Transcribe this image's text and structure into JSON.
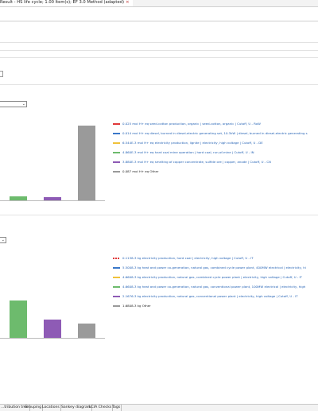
{
  "window": {
    "tab_title": "Result - HS life cycle; 1.00 Item(s); EF 3.0 Method (adapted)",
    "close_icon": "close-icon"
  },
  "chart1": {
    "legend": [
      {
        "color": "#e0393a",
        "style": "solid",
        "value": "0.025 mol H+ eq",
        "text": "seed-cotton production, organic | seed-cotton, organic | Cutoff, U - RoW",
        "link": true
      },
      {
        "color": "#3a78c9",
        "style": "solid",
        "value": "0.014 mol H+ eq",
        "text": "diesel, burned in diesel-electric generating set, 10.3kW | diesel, burned in diesel-electric generating s",
        "link": true
      },
      {
        "color": "#f0c23b",
        "style": "solid",
        "value": "6.544E-3 mol H+ eq",
        "text": "electricity production, lignite | electricity, high voltage | Cutoff, U - DE",
        "link": true
      },
      {
        "color": "#6dbb6d",
        "style": "solid",
        "value": "4.860E-3 mol H+ eq",
        "text": "hard coal mine operation | hard coal, run-of-mine | Cutoff, U - IN",
        "link": true
      },
      {
        "color": "#8e5bb5",
        "style": "solid",
        "value": "3.880E-3 mol H+ eq",
        "text": "smelting of copper concentrate, sulfide ore | copper, anode | Cutoff, U - CN",
        "link": true
      },
      {
        "color": "#9a9a9a",
        "style": "solid",
        "value": "0.087 mol H+ eq",
        "text": "Other",
        "link": false
      }
    ]
  },
  "chart2": {
    "legend": [
      {
        "color": "#e0393a",
        "style": "dashed",
        "value": "0.1138-3 kg",
        "text": "electricity production, hard coal | electricity, high voltage | Cutoff, U - IT",
        "link": true
      },
      {
        "color": "#3a78c9",
        "style": "solid",
        "value": "5.5008-3 kg",
        "text": "heat and power co-generation, natural gas, combined cycle power plant, 400MW electrical | electricity, hi",
        "link": true
      },
      {
        "color": "#f0c23b",
        "style": "solid",
        "value": "4.6608-3 kg",
        "text": "electricity production, natural gas, combined cycle power plant | electricity, high voltage | Cutoff, U - IT",
        "link": true
      },
      {
        "color": "#6dbb6d",
        "style": "solid",
        "value": "4.6608-3 kg",
        "text": "heat and power co-generation, natural gas, conventional power plant, 100MW electrical | electricity, high",
        "link": true
      },
      {
        "color": "#8e5bb5",
        "style": "solid",
        "value": "2.1676-3 kg",
        "text": "electricity production, natural gas, conventional power plant | electricity, high voltage | Cutoff, U - IT",
        "link": true
      },
      {
        "color": "#9a9a9a",
        "style": "solid",
        "value": "1.6808-3 kg",
        "text": "Other",
        "link": false
      }
    ]
  },
  "bottom_tabs": [
    "...tribution tree",
    "Grouping",
    "Locations",
    "Sankey diagram",
    "LCIA Checks",
    "Tags"
  ]
}
